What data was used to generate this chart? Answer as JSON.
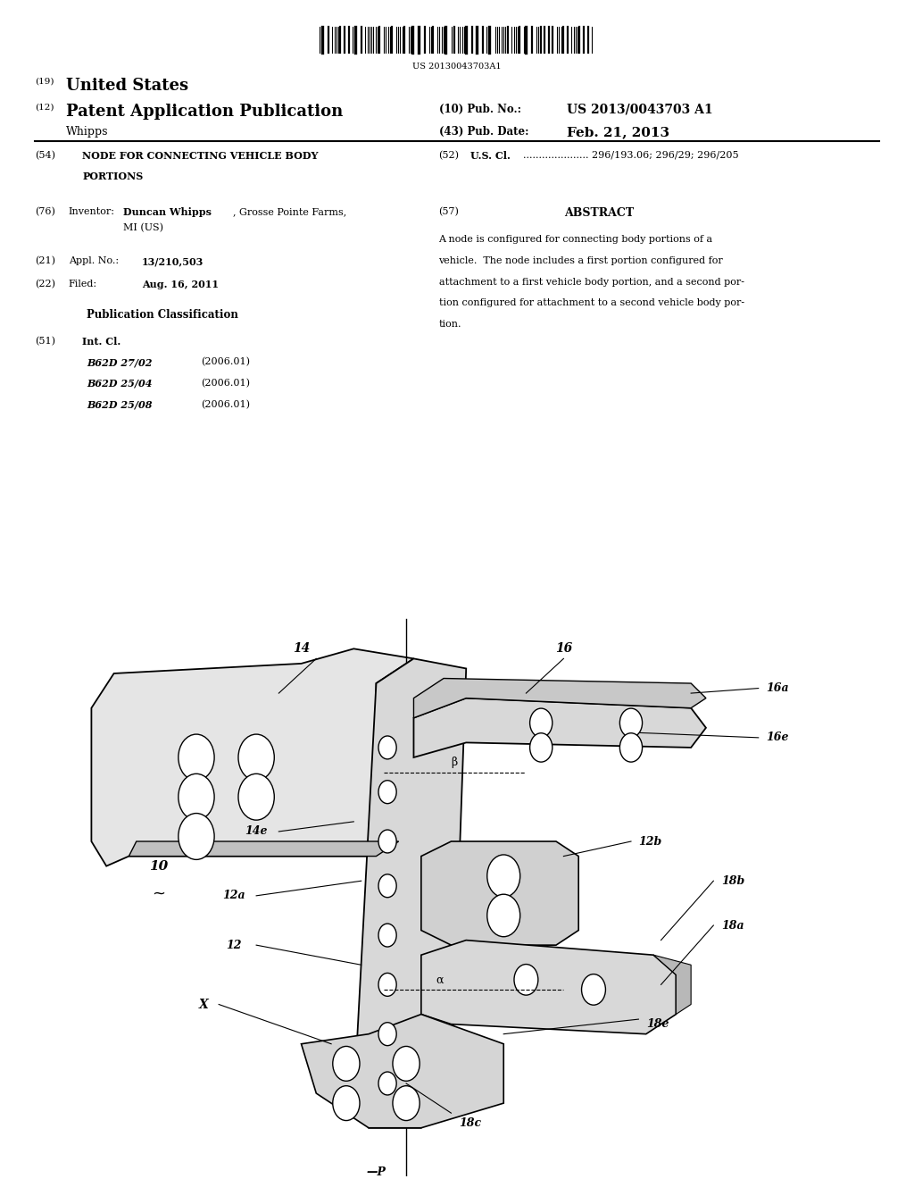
{
  "background_color": "#ffffff",
  "barcode_text": "US 20130043703A1",
  "patent_number_label": "(19)",
  "patent_number_title": "United States",
  "pub_label": "(12)",
  "pub_title": "Patent Application Publication",
  "inventor_name": "Whipps",
  "pub_no_label": "(10) Pub. No.:",
  "pub_no_value": "US 2013/0043703 A1",
  "pub_date_label": "(43) Pub. Date:",
  "pub_date_value": "Feb. 21, 2013",
  "field54_label": "(54)",
  "field52_label": "(52)",
  "field76_label": "(76)",
  "field57_label": "(57)",
  "field57_title": "ABSTRACT",
  "abstract_lines": [
    "A node is configured for connecting body portions of a",
    "vehicle.  The node includes a first portion configured for",
    "attachment to a first vehicle body portion, and a second por-",
    "tion configured for attachment to a second vehicle body por-",
    "tion."
  ],
  "field21_label": "(21)",
  "field22_label": "(22)",
  "pub_class_title": "Publication Classification",
  "field51_label": "(51)",
  "field51_classes": [
    [
      "B62D 27/02",
      "(2006.01)"
    ],
    [
      "B62D 25/04",
      "(2006.01)"
    ],
    [
      "B62D 25/08",
      "(2006.01)"
    ]
  ],
  "line_color": "#000000",
  "text_color": "#000000"
}
